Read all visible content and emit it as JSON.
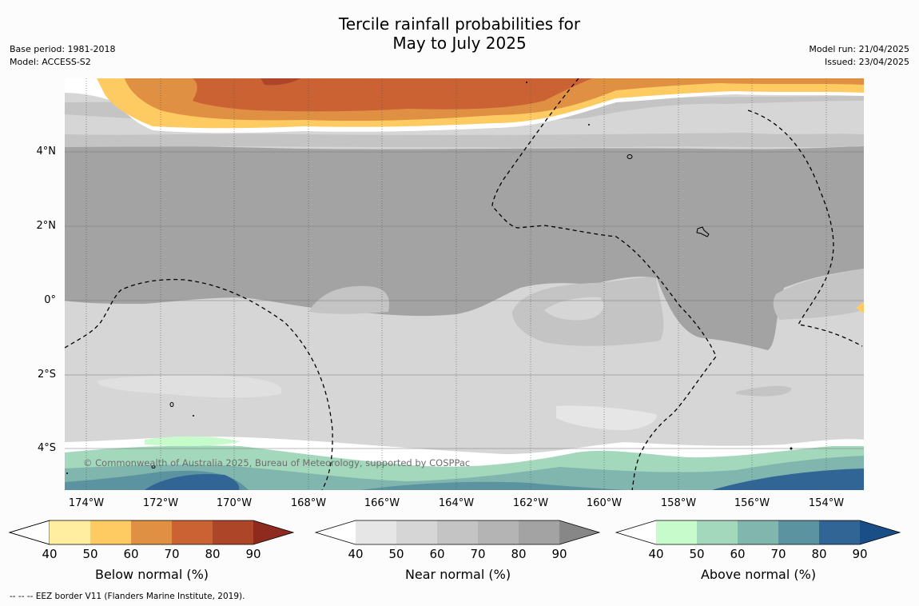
{
  "title_line1": "Tercile rainfall probabilities for",
  "title_line2": "May to July 2025",
  "meta_left": {
    "base_period": "Base period: 1981-2018",
    "model": "Model: ACCESS-S2"
  },
  "meta_right": {
    "model_run": "Model run: 21/04/2025",
    "issued": "Issued: 23/04/2025"
  },
  "map": {
    "copyright": "© Commonwealth of Australia 2025, Bureau of Meteorology, supported by COSPPac",
    "lon_labels": [
      "174°W",
      "172°W",
      "170°W",
      "168°W",
      "166°W",
      "164°W",
      "162°W",
      "160°W",
      "158°W",
      "156°W",
      "154°W"
    ],
    "lat_labels": [
      "4°N",
      "2°N",
      "0°",
      "2°S",
      "4°S"
    ]
  },
  "colorbars": [
    {
      "label": "Below normal (%)",
      "ticks": [
        "40",
        "50",
        "60",
        "70",
        "80",
        "90"
      ],
      "colors": [
        "#ffeea0",
        "#fecb63",
        "#e09043",
        "#cb6233",
        "#ad4629",
        "#8e2a1e"
      ]
    },
    {
      "label": "Near normal (%)",
      "ticks": [
        "40",
        "50",
        "60",
        "70",
        "80",
        "90"
      ],
      "colors": [
        "#e6e6e6",
        "#d6d6d6",
        "#c4c4c4",
        "#b4b4b4",
        "#a3a3a3",
        "#878787"
      ]
    },
    {
      "label": "Above normal (%)",
      "ticks": [
        "40",
        "50",
        "60",
        "70",
        "80",
        "90"
      ],
      "colors": [
        "#c8fbcc",
        "#a4d8bd",
        "#80b6ae",
        "#5b94a0",
        "#306596",
        "#1a4e87"
      ]
    }
  ],
  "footnote": "--  --  -- EEZ border V11 (Flanders Marine Institute, 2019)."
}
